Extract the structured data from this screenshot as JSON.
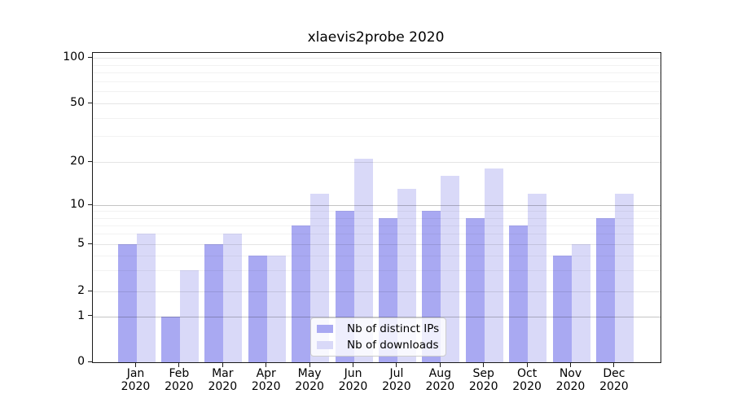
{
  "title": "xlaevis2probe 2020",
  "chart_data": {
    "type": "bar",
    "title": "xlaevis2probe 2020",
    "categories": [
      "Jan",
      "Feb",
      "Mar",
      "Apr",
      "May",
      "Jun",
      "Jul",
      "Aug",
      "Sep",
      "Oct",
      "Nov",
      "Dec"
    ],
    "category_year": "2020",
    "series": [
      {
        "name": "Nb of distinct IPs",
        "color": "#a9a9f2",
        "values": [
          5,
          1,
          5,
          4,
          7,
          9,
          8,
          9,
          8,
          7,
          4,
          8
        ]
      },
      {
        "name": "Nb of downloads",
        "color": "#d9d9f8",
        "values": [
          6,
          3,
          6,
          4,
          12,
          21,
          13,
          16,
          18,
          12,
          5,
          12
        ]
      }
    ],
    "y_axis": {
      "ticks": [
        0,
        1,
        2,
        5,
        10,
        20,
        50,
        100
      ],
      "minor_ticks": [
        3,
        4,
        6,
        7,
        8,
        9,
        30,
        40,
        60,
        70,
        80,
        90
      ],
      "scale": "log-like with linear 0-1 segment",
      "range": [
        0,
        110
      ]
    },
    "legend": {
      "position": "lower center",
      "entries": [
        "Nb of distinct IPs",
        "Nb of downloads"
      ]
    },
    "grid": true
  }
}
